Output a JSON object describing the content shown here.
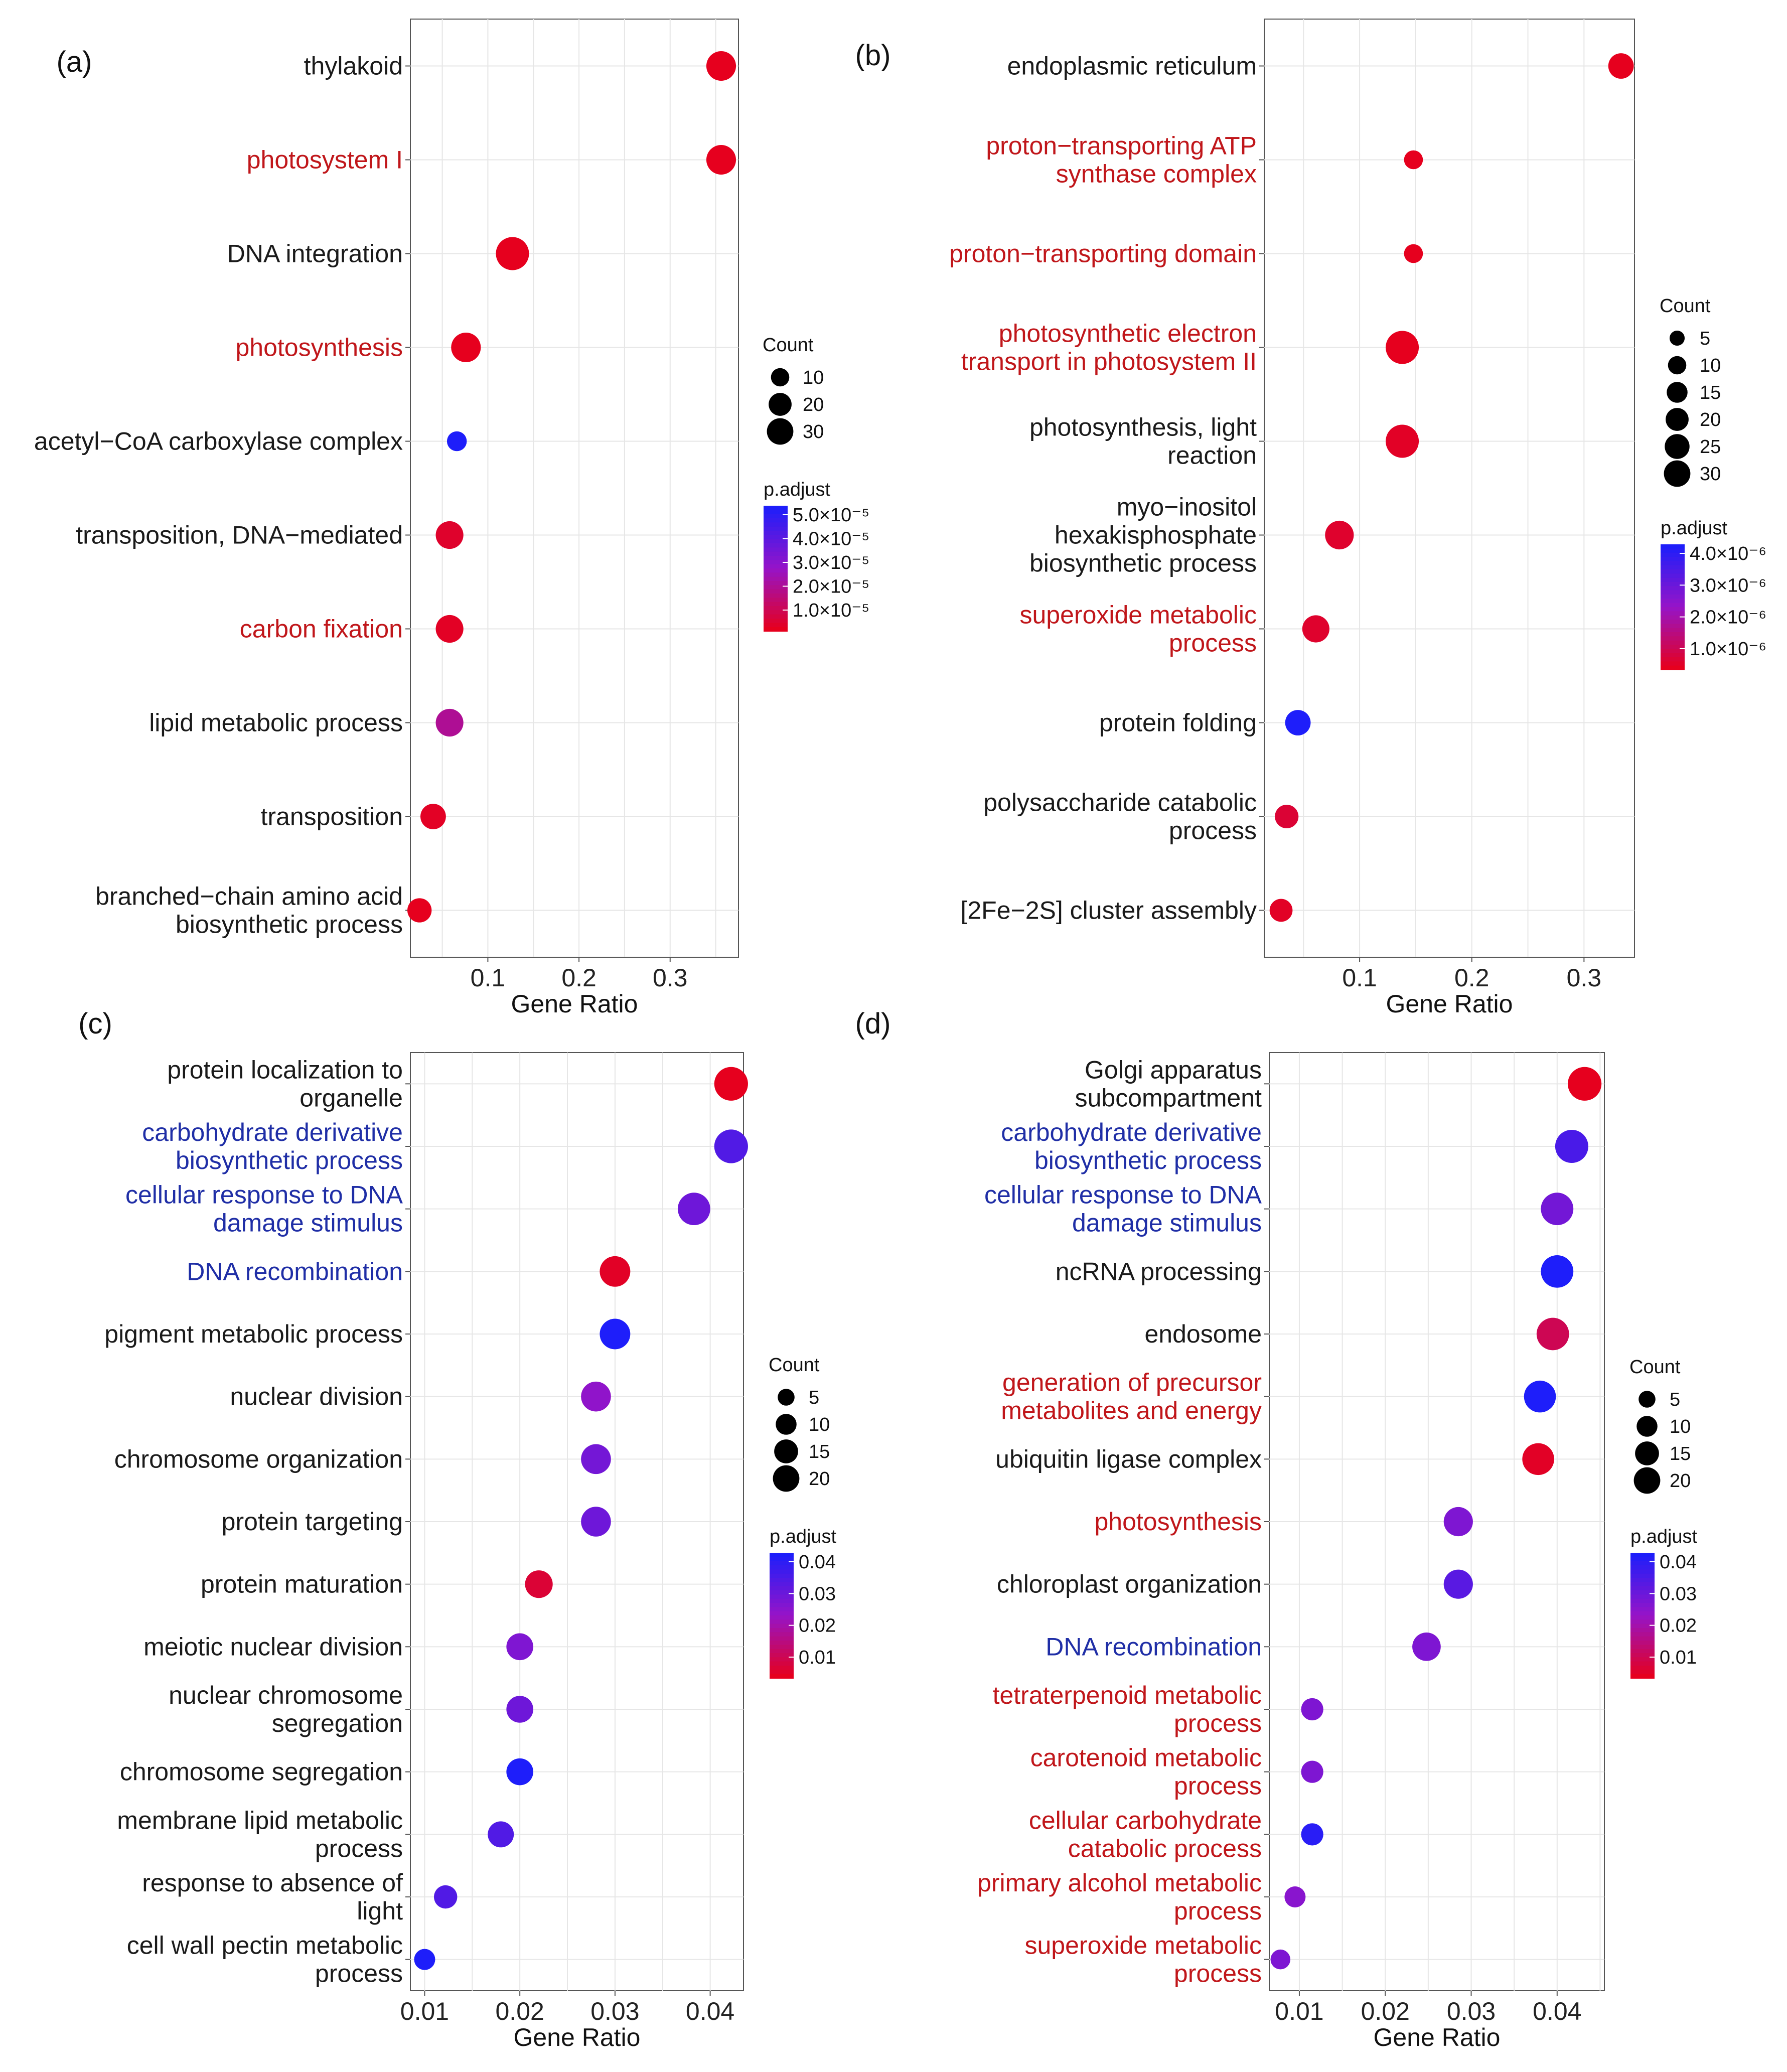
{
  "chart_data": [
    {
      "panel": "(a)",
      "type": "scatter",
      "xlabel": "Gene Ratio",
      "xlim": [
        0.015,
        0.375
      ],
      "xticks": [
        "0.1",
        "0.2",
        "0.3"
      ],
      "xtick_values": [
        0.1,
        0.2,
        0.3
      ],
      "size_legend": {
        "title": "Count",
        "values": [
          10,
          20,
          30
        ]
      },
      "color_legend": {
        "title": "p.adjust",
        "labels": [
          "5.0×10⁻⁵",
          "4.0×10⁻⁵",
          "3.0×10⁻⁵",
          "2.0×10⁻⁵",
          "1.0×10⁻⁵"
        ]
      },
      "terms": [
        {
          "label": "thylakoid",
          "gene_ratio": 0.356,
          "count": 22,
          "p_adjust": 1e-06,
          "label_color": "#1a1a1a"
        },
        {
          "label": "photosystem I",
          "gene_ratio": 0.356,
          "count": 22,
          "p_adjust": 1e-06,
          "label_color": "#c0161a"
        },
        {
          "label": "DNA integration",
          "gene_ratio": 0.127,
          "count": 30,
          "p_adjust": 1e-06,
          "label_color": "#1a1a1a"
        },
        {
          "label": "photosynthesis",
          "gene_ratio": 0.076,
          "count": 22,
          "p_adjust": 1e-06,
          "label_color": "#c0161a"
        },
        {
          "label": "acetyl-CoA carboxylase complex",
          "gene_ratio": 0.066,
          "count": 6,
          "p_adjust": 5e-05,
          "label_color": "#1a1a1a"
        },
        {
          "label": "transposition, DNA-mediated",
          "gene_ratio": 0.058,
          "count": 18,
          "p_adjust": 3e-06,
          "label_color": "#1a1a1a"
        },
        {
          "label": "carbon fixation",
          "gene_ratio": 0.058,
          "count": 18,
          "p_adjust": 2e-06,
          "label_color": "#c0161a"
        },
        {
          "label": "lipid metabolic process",
          "gene_ratio": 0.058,
          "count": 18,
          "p_adjust": 1.8e-05,
          "label_color": "#1a1a1a"
        },
        {
          "label": "transposition",
          "gene_ratio": 0.04,
          "count": 14,
          "p_adjust": 2e-06,
          "label_color": "#1a1a1a"
        },
        {
          "label": "branched-chain amino acid biosynthetic process",
          "gene_ratio": 0.025,
          "count": 12,
          "p_adjust": 1e-06,
          "label_color": "#1a1a1a"
        }
      ]
    },
    {
      "panel": "(b)",
      "type": "scatter",
      "xlabel": "Gene Ratio",
      "xlim": [
        0.015,
        0.345
      ],
      "xticks": [
        "0.1",
        "0.2",
        "0.3"
      ],
      "xtick_values": [
        0.1,
        0.2,
        0.3
      ],
      "size_legend": {
        "title": "Count",
        "values": [
          5,
          10,
          15,
          20,
          25,
          30
        ]
      },
      "color_legend": {
        "title": "p.adjust",
        "labels": [
          "4.0×10⁻⁶",
          "3.0×10⁻⁶",
          "2.0×10⁻⁶",
          "1.0×10⁻⁶"
        ]
      },
      "terms": [
        {
          "label": "endoplasmic reticulum",
          "gene_ratio": 0.333,
          "count": 14,
          "p_adjust": 1e-07,
          "label_color": "#1a1a1a"
        },
        {
          "label": "proton-transporting ATP synthase complex",
          "gene_ratio": 0.148,
          "count": 5,
          "p_adjust": 1e-07,
          "label_color": "#c0161a"
        },
        {
          "label": "proton-transporting domain",
          "gene_ratio": 0.148,
          "count": 5,
          "p_adjust": 1e-07,
          "label_color": "#c0161a"
        },
        {
          "label": "photosynthetic electron transport in photosystem II",
          "gene_ratio": 0.138,
          "count": 30,
          "p_adjust": 1e-07,
          "label_color": "#c0161a"
        },
        {
          "label": "photosynthesis, light reaction",
          "gene_ratio": 0.138,
          "count": 30,
          "p_adjust": 2e-07,
          "label_color": "#1a1a1a"
        },
        {
          "label": "myo-inositol hexakisphosphate biosynthetic process",
          "gene_ratio": 0.082,
          "count": 20,
          "p_adjust": 3e-07,
          "label_color": "#1a1a1a"
        },
        {
          "label": "superoxide metabolic process",
          "gene_ratio": 0.061,
          "count": 17,
          "p_adjust": 3e-07,
          "label_color": "#c0161a"
        },
        {
          "label": "protein folding",
          "gene_ratio": 0.045,
          "count": 14,
          "p_adjust": 4.5e-06,
          "label_color": "#1a1a1a"
        },
        {
          "label": "polysaccharide catabolic process",
          "gene_ratio": 0.035,
          "count": 11,
          "p_adjust": 4e-07,
          "label_color": "#1a1a1a"
        },
        {
          "label": "[2Fe-2S] cluster assembly",
          "gene_ratio": 0.03,
          "count": 10,
          "p_adjust": 2e-07,
          "label_color": "#1a1a1a"
        }
      ]
    },
    {
      "panel": "(c)",
      "type": "scatter",
      "xlabel": "Gene Ratio",
      "xlim": [
        0.0085,
        0.0435
      ],
      "xticks": [
        "0.01",
        "0.02",
        "0.03",
        "0.04"
      ],
      "xtick_values": [
        0.01,
        0.02,
        0.03,
        0.04
      ],
      "size_legend": {
        "title": "Count",
        "values": [
          5,
          10,
          15,
          20
        ]
      },
      "color_legend": {
        "title": "p.adjust",
        "labels": [
          "0.04",
          "0.03",
          "0.02",
          "0.01"
        ]
      },
      "terms": [
        {
          "label": "protein localization to organelle",
          "gene_ratio": 0.0422,
          "count": 21,
          "p_adjust": 0.002,
          "label_color": "#1a1a1a"
        },
        {
          "label": "carbohydrate derivative biosynthetic process",
          "gene_ratio": 0.0422,
          "count": 21,
          "p_adjust": 0.035,
          "label_color": "#1f2ea6"
        },
        {
          "label": "cellular response to DNA damage stimulus",
          "gene_ratio": 0.0383,
          "count": 19,
          "p_adjust": 0.03,
          "label_color": "#1f2ea6"
        },
        {
          "label": "DNA recombination",
          "gene_ratio": 0.03,
          "count": 16,
          "p_adjust": 0.003,
          "label_color": "#1f2ea6"
        },
        {
          "label": "pigment metabolic process",
          "gene_ratio": 0.03,
          "count": 16,
          "p_adjust": 0.044,
          "label_color": "#1a1a1a"
        },
        {
          "label": "nuclear division",
          "gene_ratio": 0.028,
          "count": 15,
          "p_adjust": 0.024,
          "label_color": "#1a1a1a"
        },
        {
          "label": "chromosome organization",
          "gene_ratio": 0.028,
          "count": 15,
          "p_adjust": 0.029,
          "label_color": "#1a1a1a"
        },
        {
          "label": "protein targeting",
          "gene_ratio": 0.028,
          "count": 15,
          "p_adjust": 0.03,
          "label_color": "#1a1a1a"
        },
        {
          "label": "protein maturation",
          "gene_ratio": 0.022,
          "count": 12,
          "p_adjust": 0.005,
          "label_color": "#1a1a1a"
        },
        {
          "label": "meiotic nuclear division",
          "gene_ratio": 0.02,
          "count": 11,
          "p_adjust": 0.027,
          "label_color": "#1a1a1a"
        },
        {
          "label": "nuclear chromosome segregation",
          "gene_ratio": 0.02,
          "count": 11,
          "p_adjust": 0.03,
          "label_color": "#1a1a1a"
        },
        {
          "label": "chromosome segregation",
          "gene_ratio": 0.02,
          "count": 11,
          "p_adjust": 0.044,
          "label_color": "#1a1a1a"
        },
        {
          "label": "membrane lipid metabolic process",
          "gene_ratio": 0.018,
          "count": 10,
          "p_adjust": 0.035,
          "label_color": "#1a1a1a"
        },
        {
          "label": "response to absence of light",
          "gene_ratio": 0.0122,
          "count": 7,
          "p_adjust": 0.035,
          "label_color": "#1a1a1a"
        },
        {
          "label": "cell wall pectin metabolic process",
          "gene_ratio": 0.01,
          "count": 5,
          "p_adjust": 0.044,
          "label_color": "#1a1a1a"
        }
      ]
    },
    {
      "panel": "(d)",
      "type": "scatter",
      "xlabel": "Gene Ratio",
      "xlim": [
        0.0065,
        0.0455
      ],
      "xticks": [
        "0.01",
        "0.02",
        "0.03",
        "0.04"
      ],
      "xtick_values": [
        0.01,
        0.02,
        0.03,
        0.04
      ],
      "size_legend": {
        "title": "Count",
        "values": [
          5,
          10,
          15,
          20
        ]
      },
      "color_legend": {
        "title": "p.adjust",
        "labels": [
          "0.04",
          "0.03",
          "0.02",
          "0.01"
        ]
      },
      "terms": [
        {
          "label": "Golgi apparatus subcompartment",
          "gene_ratio": 0.0432,
          "count": 21,
          "p_adjust": 0.003,
          "label_color": "#1a1a1a"
        },
        {
          "label": "carbohydrate derivative biosynthetic process",
          "gene_ratio": 0.0417,
          "count": 20,
          "p_adjust": 0.04,
          "label_color": "#1f2ea6"
        },
        {
          "label": "cellular response to DNA damage stimulus",
          "gene_ratio": 0.04,
          "count": 19,
          "p_adjust": 0.032,
          "label_color": "#1f2ea6"
        },
        {
          "label": "ncRNA processing",
          "gene_ratio": 0.04,
          "count": 19,
          "p_adjust": 0.048,
          "label_color": "#1a1a1a"
        },
        {
          "label": "endosome",
          "gene_ratio": 0.0395,
          "count": 19,
          "p_adjust": 0.01,
          "label_color": "#1a1a1a"
        },
        {
          "label": "generation of precursor metabolites and energy",
          "gene_ratio": 0.038,
          "count": 18,
          "p_adjust": 0.048,
          "label_color": "#c0161a"
        },
        {
          "label": "ubiquitin ligase complex",
          "gene_ratio": 0.0378,
          "count": 18,
          "p_adjust": 0.004,
          "label_color": "#1a1a1a"
        },
        {
          "label": "photosynthesis",
          "gene_ratio": 0.0285,
          "count": 14,
          "p_adjust": 0.03,
          "label_color": "#c0161a"
        },
        {
          "label": "chloroplast organization",
          "gene_ratio": 0.0285,
          "count": 14,
          "p_adjust": 0.037,
          "label_color": "#1a1a1a"
        },
        {
          "label": "DNA recombination",
          "gene_ratio": 0.0248,
          "count": 13,
          "p_adjust": 0.03,
          "label_color": "#1f2ea6"
        },
        {
          "label": "tetraterpenoid metabolic process",
          "gene_ratio": 0.0115,
          "count": 6,
          "p_adjust": 0.03,
          "label_color": "#c0161a"
        },
        {
          "label": "carotenoid metabolic process",
          "gene_ratio": 0.0115,
          "count": 6,
          "p_adjust": 0.03,
          "label_color": "#c0161a"
        },
        {
          "label": "cellular carbohydrate catabolic process",
          "gene_ratio": 0.0115,
          "count": 6,
          "p_adjust": 0.046,
          "label_color": "#c0161a"
        },
        {
          "label": "primary alcohol metabolic process",
          "gene_ratio": 0.0095,
          "count": 5,
          "p_adjust": 0.028,
          "label_color": "#c0161a"
        },
        {
          "label": "superoxide metabolic process",
          "gene_ratio": 0.0078,
          "count": 4,
          "p_adjust": 0.03,
          "label_color": "#c0161a"
        }
      ]
    }
  ]
}
